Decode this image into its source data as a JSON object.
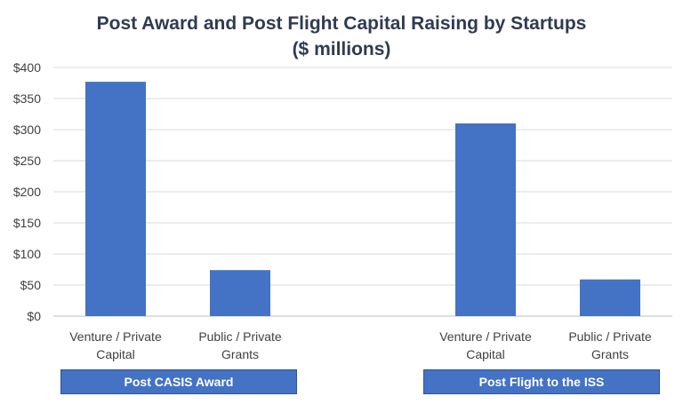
{
  "chart_data": {
    "type": "bar",
    "title": "Post Award and Post Flight Capital Raising by Startups",
    "subtitle": "($ millions)",
    "groups": [
      {
        "label": "Post CASIS Award",
        "categories": [
          [
            "Venture / Private",
            "Capital"
          ],
          [
            "Public / Private",
            "Grants"
          ]
        ],
        "values": [
          377,
          74
        ]
      },
      {
        "label": "Post Flight to the ISS",
        "categories": [
          [
            "Venture / Private",
            "Capital"
          ],
          [
            "Public / Private",
            "Grants"
          ]
        ],
        "values": [
          310,
          59
        ]
      }
    ],
    "yticks": [
      "$0",
      "$50",
      "$100",
      "$150",
      "$200",
      "$250",
      "$300",
      "$350",
      "$400"
    ],
    "ylim": [
      0,
      400
    ],
    "grid": true,
    "bar_color": "#4472c4"
  }
}
